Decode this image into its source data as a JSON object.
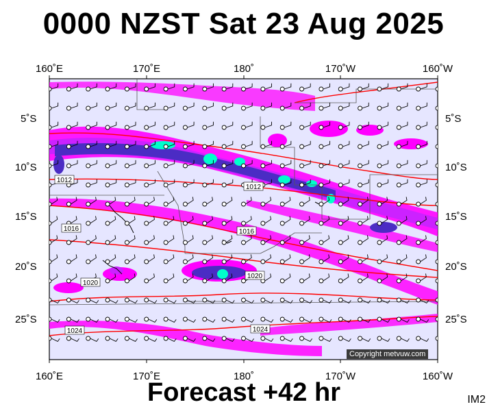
{
  "title": "0000 NZST Sat 23 Aug 2025",
  "footer": "Forecast +42 hr",
  "image_tag": "IM2",
  "copyright": "Copyright metvuw.com",
  "longitude_labels": [
    "160˚E",
    "170˚E",
    "180˚",
    "170˚W",
    "160˚W"
  ],
  "latitude_labels": [
    "5˚S",
    "10˚S",
    "15˚S",
    "20˚S",
    "25˚S"
  ],
  "isobar_labels": [
    "1012",
    "1012",
    "1016",
    "1016",
    "1020",
    "1020",
    "1024",
    "1024"
  ],
  "colors": {
    "background": "#e6e6ff",
    "rain_light": "#ff00ff",
    "rain_moderate": "#cc00ff",
    "rain_heavy": "#4b2cc4",
    "rain_intense": "#2266ff",
    "rain_extreme": "#00ffcc",
    "isobar": "#ff0000",
    "land": "#000000"
  }
}
